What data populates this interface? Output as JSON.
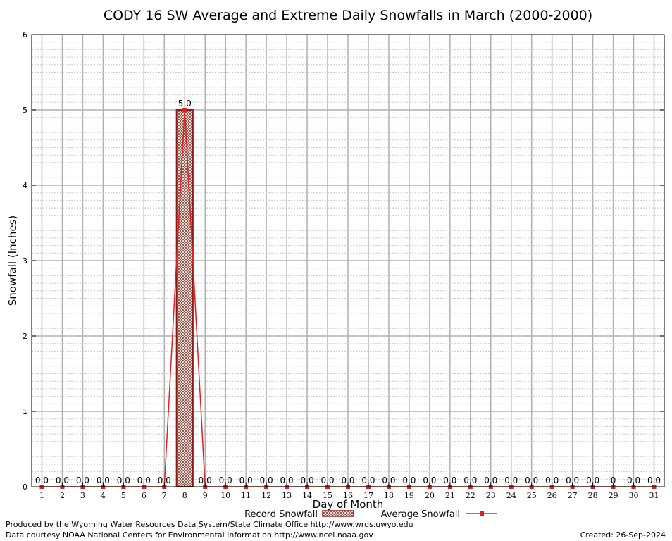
{
  "chart_data": {
    "type": "bar",
    "title": "CODY 16 SW Average and Extreme Daily Snowfalls in March (2000-2000)",
    "xlabel": "Day of Month",
    "ylabel": "Snowfall (Inches)",
    "ylim": [
      0,
      6
    ],
    "yticks": [
      "0",
      "1",
      "2",
      "3",
      "4",
      "5",
      "6"
    ],
    "categories": [
      "1",
      "2",
      "3",
      "4",
      "5",
      "6",
      "7",
      "8",
      "9",
      "10",
      "11",
      "12",
      "13",
      "14",
      "15",
      "16",
      "17",
      "18",
      "19",
      "20",
      "21",
      "22",
      "23",
      "24",
      "25",
      "26",
      "27",
      "28",
      "29",
      "30",
      "31"
    ],
    "series": [
      {
        "name": "Record Snowfall",
        "values": [
          0,
          0,
          0,
          0,
          0,
          0,
          0,
          5.0,
          0,
          0,
          0,
          0,
          0,
          0,
          0,
          0,
          0,
          0,
          0,
          0,
          0,
          0,
          0,
          0,
          0,
          0,
          0,
          0,
          0,
          0,
          0
        ]
      },
      {
        "name": "Average Snowfall",
        "values": [
          0,
          0,
          0,
          0,
          0,
          0,
          0,
          5.0,
          0,
          0,
          0,
          0,
          0,
          0,
          0,
          0,
          0,
          0,
          0,
          0,
          0,
          0,
          0,
          0,
          0,
          0,
          0,
          0,
          0,
          0,
          0
        ]
      }
    ],
    "data_labels": [
      "0.0",
      "0.0",
      "0.0",
      "0.0",
      "0.0",
      "0.0",
      "0.0",
      "5.0",
      "0.0",
      "0.0",
      "0.0",
      "0.0",
      "0.0",
      "0.0",
      "0.0",
      "0.0",
      "0.0",
      "0.0",
      "0.0",
      "0.0",
      "0.0",
      "0.0",
      "0.0",
      "0.0",
      "0.0",
      "0.0",
      "0.0",
      "0.0",
      "0",
      "0.0",
      "0.0"
    ],
    "grid": true,
    "legend_position": "bottom-center",
    "colors": {
      "record_border": "#8b1a1a",
      "average_line": "#e02020",
      "grid": "#b0b0b0"
    }
  },
  "footer": {
    "produced_by": "Produced by the Wyoming Water Resources Data System/State Climate Office http://www.wrds.uwyo.edu",
    "data_courtesy": "Data courtesy NOAA National Centers for Environmental Information http://www.ncei.noaa.gov",
    "created": "Created:  26-Sep-2024"
  }
}
